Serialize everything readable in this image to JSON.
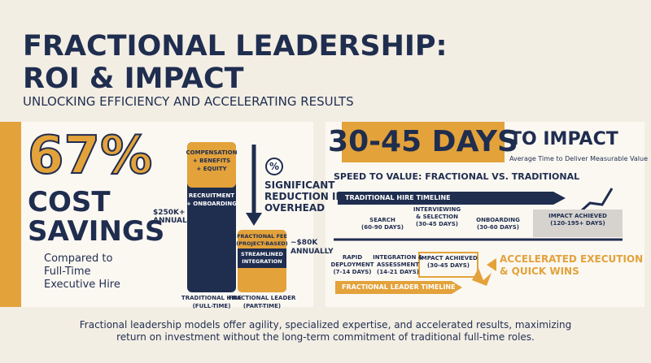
{
  "header": {
    "title": [
      "FRACTIONAL LEADERSHIP:",
      "ROI & IMPACT"
    ],
    "subtitle": "UNLOCKING EFFICIENCY AND ACCELERATING RESULTS"
  },
  "cost": {
    "headline": "67%",
    "label": [
      "COST",
      "SAVINGS"
    ],
    "caption": [
      "Compared to",
      "Full-Time",
      "Executive Hire"
    ],
    "traditional": {
      "segments": [
        [
          "COMPENSATION",
          "+ BENEFITS",
          "+ EQUITY"
        ],
        [
          "RECRUITMENT",
          "+ ONBOARDING"
        ]
      ],
      "amount": [
        "$250K+",
        "ANNUALLY"
      ],
      "caption": [
        "TRADITIONAL HIRE",
        "(FULL-TIME)"
      ]
    },
    "fractional": {
      "segments": [
        [
          "FRACTIONAL FEE",
          "(PROJECT-BASED)"
        ],
        [
          "STREAMLINED",
          "INTEGRATION"
        ]
      ],
      "amount": [
        "~$80K",
        "ANNUALLY"
      ],
      "caption": [
        "FRACTIONAL LEADER",
        "(PART-TIME)"
      ]
    },
    "callout": {
      "icon": "%",
      "text": [
        "SIGNIFICANT",
        "REDUCTION IN",
        "OVERHEAD"
      ]
    }
  },
  "speed": {
    "headline": "30-45 DAYS",
    "label": "TO IMPACT",
    "caption": "Average Time to Deliver Measurable Value",
    "heading": "SPEED TO VALUE: FRACTIONAL VS. TRADITIONAL",
    "traditional": {
      "label": "TRADITIONAL HIRE TIMELINE",
      "steps": [
        [
          "SEARCH",
          "(60-90 DAYS)"
        ],
        [
          "INTERVIEWING",
          "& SELECTION",
          "(30-45 DAYS)"
        ],
        [
          "ONBOARDING",
          "(30-60 DAYS)"
        ],
        [
          "IMPACT ACHIEVED",
          "(120-195+ DAYS)"
        ]
      ]
    },
    "fractional": {
      "label": "FRACTIONAL LEADER TIMELINE",
      "steps": [
        [
          "RAPID",
          "DEPLOYMENT",
          "(7-14 DAYS)"
        ],
        [
          "INTEGRATION &",
          "ASSESSMENT",
          "(14-21 DAYS)"
        ],
        [
          "IMPACT ACHIEVED",
          "(30-45 DAYS)"
        ]
      ]
    },
    "highlight": [
      "ACCELERATED EXECUTION",
      "& QUICK WINS"
    ]
  },
  "footer": [
    "Fractional leadership models offer agility, specialized expertise, and accelerated results, maximizing",
    "return on investment without the long-term commitment of traditional full-time roles."
  ]
}
